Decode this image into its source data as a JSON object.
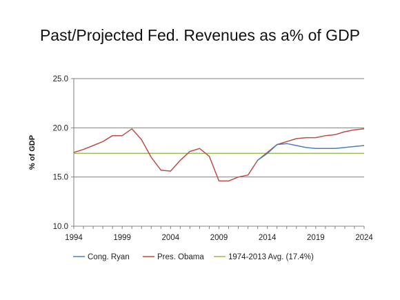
{
  "chart_data": {
    "type": "line",
    "title": "Past/Projected Fed. Revenues as a% of GDP",
    "ylabel": "% of GDP",
    "xlabel": "",
    "ylim": [
      10.0,
      25.0
    ],
    "xlim": [
      1994,
      2024
    ],
    "y_ticks": [
      "10.0",
      "15.0",
      "20.0",
      "25.0"
    ],
    "x_ticks": [
      "1994",
      "1999",
      "2004",
      "2009",
      "2014",
      "2019",
      "2024"
    ],
    "grid": "horizontal",
    "legend_position": "bottom",
    "series": [
      {
        "name": "Cong. Ryan",
        "color": "#4a7ebb",
        "x": [
          2013,
          2014,
          2015,
          2016,
          2017,
          2018,
          2019,
          2020,
          2021,
          2022,
          2023,
          2024
        ],
        "values": [
          16.7,
          17.4,
          18.3,
          18.4,
          18.2,
          18.0,
          17.9,
          17.9,
          17.9,
          18.0,
          18.1,
          18.2
        ]
      },
      {
        "name": "Pres. Obama",
        "color": "#be4b48",
        "x": [
          1994,
          1995,
          1996,
          1997,
          1998,
          1999,
          2000,
          2001,
          2002,
          2003,
          2004,
          2005,
          2006,
          2007,
          2008,
          2009,
          2010,
          2011,
          2012,
          2013,
          2014,
          2015,
          2016,
          2017,
          2018,
          2019,
          2020,
          2021,
          2022,
          2023,
          2024
        ],
        "values": [
          17.5,
          17.8,
          18.2,
          18.6,
          19.2,
          19.2,
          19.9,
          18.8,
          17.0,
          15.7,
          15.6,
          16.7,
          17.6,
          17.9,
          17.1,
          14.6,
          14.6,
          15.0,
          15.2,
          16.7,
          17.5,
          18.3,
          18.6,
          18.9,
          19.0,
          19.0,
          19.2,
          19.3,
          19.6,
          19.8,
          19.9
        ]
      },
      {
        "name": "1974-2013 Avg. (17.4%)",
        "color": "#98b954",
        "x": [
          1994,
          2024
        ],
        "values": [
          17.4,
          17.4
        ]
      }
    ]
  }
}
